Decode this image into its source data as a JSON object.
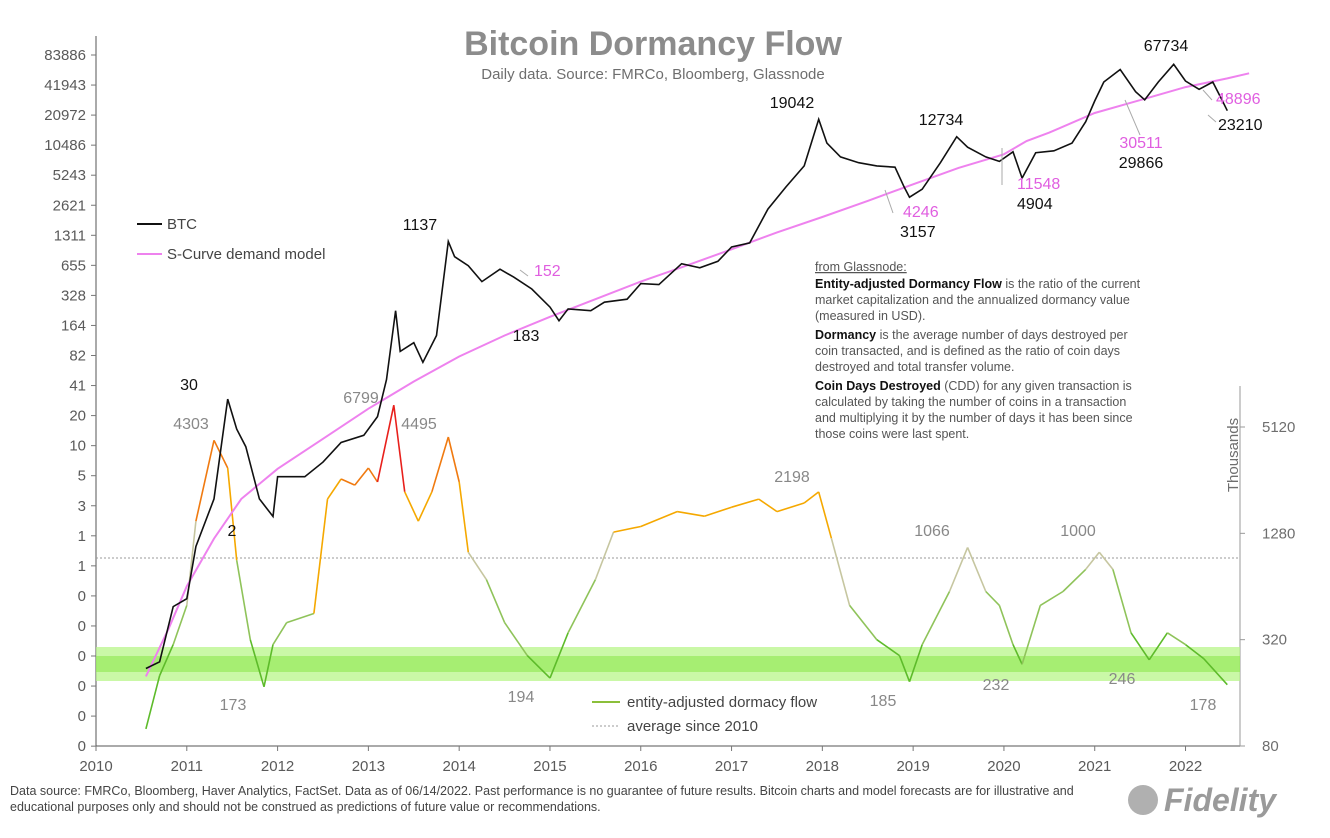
{
  "title": "Bitcoin Dormancy Flow",
  "subtitle": "Daily data.  Source: FMRCo, Bloomberg, Glassnode",
  "footer": "Data source: FMRCo, Bloomberg, Haver Analytics, FactSet. Data as of 06/14/2022. Past performance is no guarantee of future results. Bitcoin charts and model forecasts are for illustrative and educational purposes only and should not be construed as predictions of future value or recommendations.",
  "logo_text": "Fidelity",
  "note": {
    "heading": "from Glassnode:",
    "p1_bold": "Entity-adjusted Dormancy Flow",
    "p1_line1": " is the ratio of the current",
    "p1_line2": "market capitalization and the annualized dormancy value",
    "p1_line3": "(measured in USD).",
    "p2_bold": "Dormancy",
    "p2_line1": " is the average number  of days destroyed per",
    "p2_line2": "coin transacted, and is defined as the ratio of coin days",
    "p2_line3": "destroyed and total transfer volume.",
    "p3_bold": "Coin Days Destroyed",
    "p3_line1": " (CDD) for any given transaction is",
    "p3_line2": "calculated by taking the number  of coins in a transaction",
    "p3_line3": "and multiplying  it by the number  of days it has been since",
    "p3_line4": "those coins were last spent."
  },
  "colors": {
    "btc": "#111111",
    "scurve": "#ee82ee",
    "flow_low": "#5dbb2a",
    "flow_mid": "#f5a800",
    "flow_high": "#e8201c",
    "band": "#9cf25a",
    "title": "#8c8c8c"
  },
  "chart_data": {
    "type": "line",
    "x_axis": {
      "ticks": [
        "2010",
        "2011",
        "2012",
        "2013",
        "2014",
        "2015",
        "2016",
        "2017",
        "2018",
        "2019",
        "2020",
        "2021",
        "2022"
      ],
      "range": [
        2010,
        2022.6
      ]
    },
    "y_axis_left": {
      "scale": "log",
      "ticks": [
        "83886",
        "41943",
        "20972",
        "10486",
        "5243",
        "2621",
        "1311",
        "655",
        "328",
        "164",
        "82",
        "41",
        "20",
        "10",
        "5",
        "3",
        "1",
        "1",
        "0",
        "0",
        "0",
        "0",
        "0",
        "0"
      ]
    },
    "y_axis_right": {
      "label": "Thousands",
      "scale": "log",
      "ticks": [
        "5120",
        "1280",
        "320",
        "80"
      ]
    },
    "series": [
      {
        "name": "BTC",
        "axis": "left",
        "points": [
          [
            2010.55,
            0.06
          ],
          [
            2010.7,
            0.07
          ],
          [
            2010.85,
            0.25
          ],
          [
            2011.0,
            0.3
          ],
          [
            2011.1,
            1
          ],
          [
            2011.3,
            3
          ],
          [
            2011.45,
            30
          ],
          [
            2011.55,
            15
          ],
          [
            2011.65,
            10
          ],
          [
            2011.8,
            3
          ],
          [
            2011.95,
            2
          ],
          [
            2012.0,
            5
          ],
          [
            2012.3,
            5
          ],
          [
            2012.5,
            7
          ],
          [
            2012.7,
            11
          ],
          [
            2012.95,
            13
          ],
          [
            2013.1,
            20
          ],
          [
            2013.2,
            47
          ],
          [
            2013.3,
            230
          ],
          [
            2013.35,
            90
          ],
          [
            2013.5,
            110
          ],
          [
            2013.6,
            70
          ],
          [
            2013.75,
            130
          ],
          [
            2013.88,
            1137
          ],
          [
            2013.95,
            800
          ],
          [
            2014.1,
            650
          ],
          [
            2014.25,
            450
          ],
          [
            2014.45,
            600
          ],
          [
            2014.6,
            500
          ],
          [
            2014.8,
            380
          ],
          [
            2015.0,
            250
          ],
          [
            2015.1,
            183
          ],
          [
            2015.2,
            240
          ],
          [
            2015.45,
            230
          ],
          [
            2015.6,
            280
          ],
          [
            2015.85,
            300
          ],
          [
            2016.0,
            430
          ],
          [
            2016.2,
            420
          ],
          [
            2016.45,
            680
          ],
          [
            2016.65,
            620
          ],
          [
            2016.85,
            720
          ],
          [
            2017.0,
            1000
          ],
          [
            2017.2,
            1100
          ],
          [
            2017.4,
            2400
          ],
          [
            2017.6,
            4000
          ],
          [
            2017.8,
            6500
          ],
          [
            2017.96,
            19042
          ],
          [
            2018.05,
            11000
          ],
          [
            2018.2,
            8000
          ],
          [
            2018.4,
            7000
          ],
          [
            2018.6,
            6500
          ],
          [
            2018.8,
            6300
          ],
          [
            2018.9,
            4000
          ],
          [
            2018.96,
            3157
          ],
          [
            2019.1,
            3800
          ],
          [
            2019.3,
            7000
          ],
          [
            2019.48,
            12734
          ],
          [
            2019.6,
            10000
          ],
          [
            2019.8,
            8000
          ],
          [
            2019.95,
            7200
          ],
          [
            2020.1,
            9000
          ],
          [
            2020.2,
            4904
          ],
          [
            2020.35,
            8800
          ],
          [
            2020.55,
            9200
          ],
          [
            2020.75,
            11000
          ],
          [
            2020.9,
            18000
          ],
          [
            2021.0,
            29000
          ],
          [
            2021.1,
            45000
          ],
          [
            2021.28,
            60000
          ],
          [
            2021.45,
            36000
          ],
          [
            2021.55,
            29866
          ],
          [
            2021.7,
            45000
          ],
          [
            2021.87,
            67734
          ],
          [
            2022.0,
            46000
          ],
          [
            2022.15,
            38000
          ],
          [
            2022.3,
            45000
          ],
          [
            2022.4,
            30000
          ],
          [
            2022.46,
            23210
          ]
        ]
      },
      {
        "name": "S-Curve demand model",
        "axis": "left",
        "points": [
          [
            2010.55,
            0.05
          ],
          [
            2010.8,
            0.15
          ],
          [
            2011.0,
            0.4
          ],
          [
            2011.3,
            1.2
          ],
          [
            2011.6,
            3
          ],
          [
            2012.0,
            6
          ],
          [
            2012.5,
            12
          ],
          [
            2013.0,
            24
          ],
          [
            2013.5,
            45
          ],
          [
            2014.0,
            80
          ],
          [
            2014.5,
            130
          ],
          [
            2015.0,
            200
          ],
          [
            2015.5,
            300
          ],
          [
            2016.0,
            450
          ],
          [
            2016.5,
            650
          ],
          [
            2017.0,
            950
          ],
          [
            2017.5,
            1400
          ],
          [
            2018.0,
            2000
          ],
          [
            2018.5,
            2900
          ],
          [
            2019.0,
            4246
          ],
          [
            2019.5,
            6200
          ],
          [
            2020.0,
            8500
          ],
          [
            2020.25,
            11548
          ],
          [
            2020.5,
            14000
          ],
          [
            2021.0,
            22000
          ],
          [
            2021.55,
            30511
          ],
          [
            2022.0,
            40000
          ],
          [
            2022.46,
            48896
          ],
          [
            2022.7,
            55000
          ]
        ]
      },
      {
        "name": "entity-adjusted dormacy flow",
        "axis": "right",
        "points": [
          [
            2010.55,
            100
          ],
          [
            2010.7,
            200
          ],
          [
            2010.85,
            300
          ],
          [
            2011.0,
            500
          ],
          [
            2011.1,
            1500
          ],
          [
            2011.3,
            4303
          ],
          [
            2011.45,
            3000
          ],
          [
            2011.55,
            900
          ],
          [
            2011.7,
            320
          ],
          [
            2011.85,
            173
          ],
          [
            2011.95,
            300
          ],
          [
            2012.1,
            400
          ],
          [
            2012.4,
            450
          ],
          [
            2012.55,
            2000
          ],
          [
            2012.7,
            2600
          ],
          [
            2012.85,
            2400
          ],
          [
            2013.0,
            3000
          ],
          [
            2013.1,
            2500
          ],
          [
            2013.28,
            6799
          ],
          [
            2013.4,
            2200
          ],
          [
            2013.55,
            1500
          ],
          [
            2013.7,
            2200
          ],
          [
            2013.88,
            4495
          ],
          [
            2014.0,
            2500
          ],
          [
            2014.1,
            1000
          ],
          [
            2014.3,
            700
          ],
          [
            2014.5,
            400
          ],
          [
            2014.75,
            260
          ],
          [
            2015.0,
            194
          ],
          [
            2015.2,
            350
          ],
          [
            2015.5,
            700
          ],
          [
            2015.7,
            1300
          ],
          [
            2016.0,
            1400
          ],
          [
            2016.4,
            1700
          ],
          [
            2016.7,
            1600
          ],
          [
            2017.0,
            1800
          ],
          [
            2017.3,
            2000
          ],
          [
            2017.5,
            1700
          ],
          [
            2017.8,
            1900
          ],
          [
            2017.96,
            2198
          ],
          [
            2018.1,
            1200
          ],
          [
            2018.3,
            500
          ],
          [
            2018.6,
            320
          ],
          [
            2018.85,
            260
          ],
          [
            2018.96,
            185
          ],
          [
            2019.1,
            300
          ],
          [
            2019.4,
            600
          ],
          [
            2019.6,
            1066
          ],
          [
            2019.8,
            600
          ],
          [
            2019.95,
            500
          ],
          [
            2020.1,
            300
          ],
          [
            2020.2,
            232
          ],
          [
            2020.4,
            500
          ],
          [
            2020.65,
            600
          ],
          [
            2020.9,
            800
          ],
          [
            2021.05,
            1000
          ],
          [
            2021.2,
            800
          ],
          [
            2021.4,
            350
          ],
          [
            2021.6,
            246
          ],
          [
            2021.8,
            350
          ],
          [
            2022.0,
            300
          ],
          [
            2022.2,
            250
          ],
          [
            2022.46,
            178
          ]
        ]
      },
      {
        "name": "average since 2010",
        "axis": "right",
        "constant": 1000
      }
    ],
    "annotations": [
      {
        "text": "67734",
        "color": "black"
      },
      {
        "text": "48896",
        "color": "magenta"
      },
      {
        "text": "23210",
        "color": "black"
      },
      {
        "text": "19042",
        "color": "black"
      },
      {
        "text": "12734",
        "color": "black"
      },
      {
        "text": "30511",
        "color": "magenta"
      },
      {
        "text": "29866",
        "color": "black"
      },
      {
        "text": "11548",
        "color": "magenta"
      },
      {
        "text": "4904",
        "color": "black"
      },
      {
        "text": "4246",
        "color": "magenta"
      },
      {
        "text": "3157",
        "color": "black"
      },
      {
        "text": "1137",
        "color": "black"
      },
      {
        "text": "152",
        "color": "magenta"
      },
      {
        "text": "183",
        "color": "black"
      },
      {
        "text": "30",
        "color": "black"
      },
      {
        "text": "4303",
        "color": "gray"
      },
      {
        "text": "2",
        "color": "black"
      },
      {
        "text": "6799",
        "color": "gray"
      },
      {
        "text": "4495",
        "color": "gray"
      },
      {
        "text": "2198",
        "color": "gray"
      },
      {
        "text": "1066",
        "color": "gray"
      },
      {
        "text": "1000",
        "color": "gray"
      },
      {
        "text": "173",
        "color": "gray"
      },
      {
        "text": "194",
        "color": "gray"
      },
      {
        "text": "185",
        "color": "gray"
      },
      {
        "text": "232",
        "color": "gray"
      },
      {
        "text": "246",
        "color": "gray"
      },
      {
        "text": "178",
        "color": "gray"
      }
    ]
  }
}
